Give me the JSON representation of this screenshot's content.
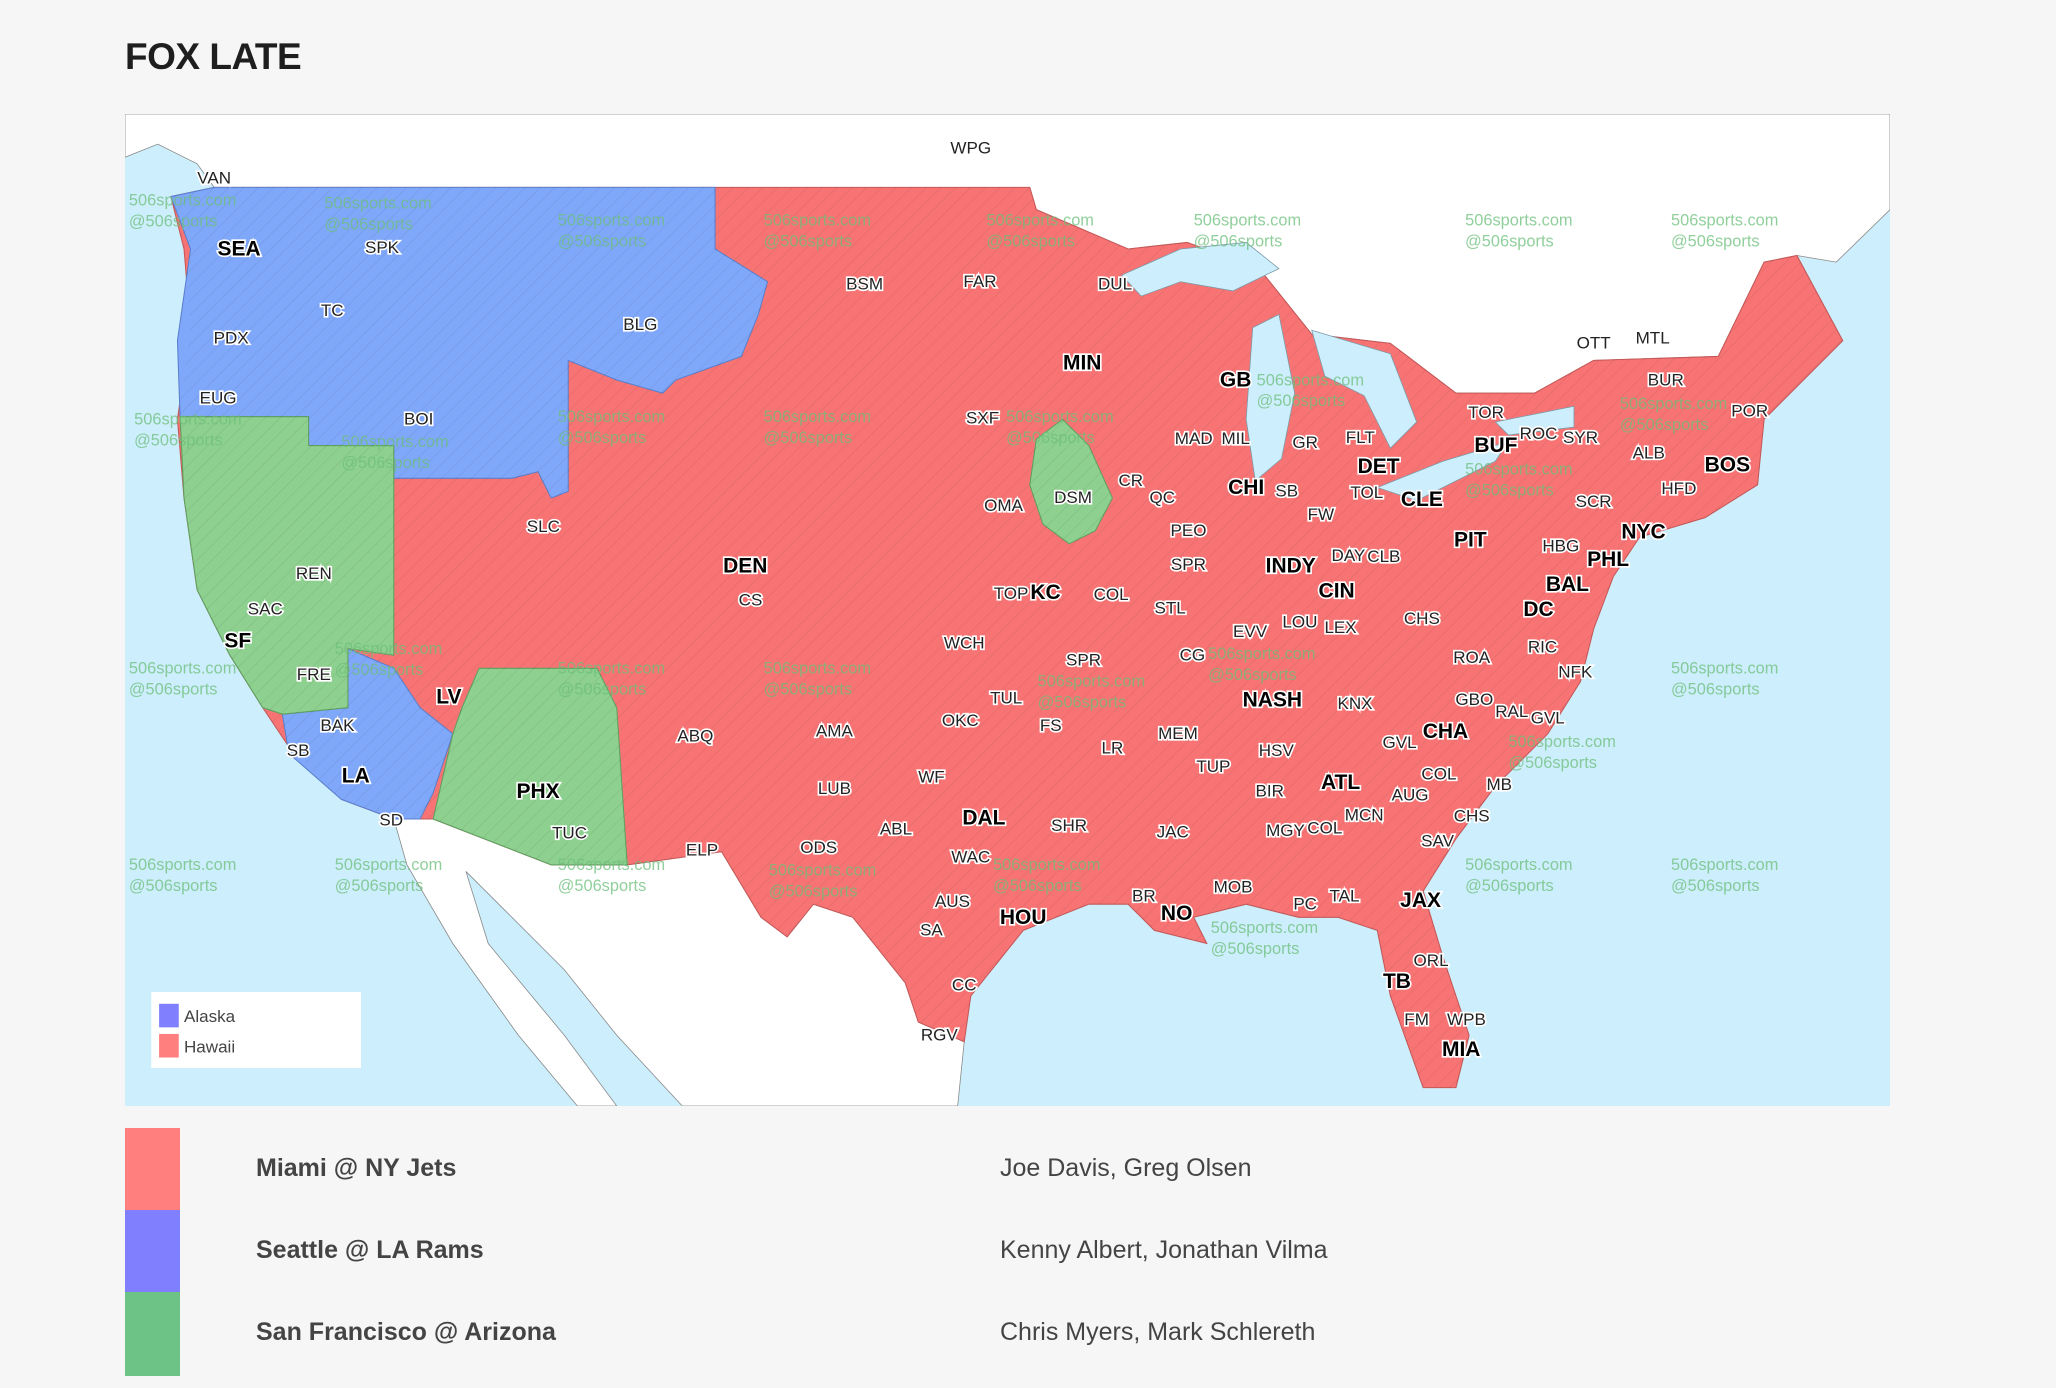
{
  "title": "FOX LATE",
  "colors": {
    "red": "#ff7f7f",
    "blue": "#8080ff",
    "green": "#6dc285",
    "water": "#cdeefc"
  },
  "map": {
    "watermark": [
      "506sports.com",
      "@506sports"
    ],
    "inset_legend": [
      {
        "label": "Alaska",
        "color": "#8080ff"
      },
      {
        "label": "Hawaii",
        "color": "#ff7f7f"
      }
    ],
    "city_labels": [
      "VAN",
      "SEA",
      "SPK",
      "TC",
      "PDX",
      "EUG",
      "BOI",
      "BLG",
      "WPG",
      "BSM",
      "FAR",
      "DUL",
      "MIN",
      "GB",
      "SXF",
      "MAD",
      "MIL",
      "GR",
      "FLT",
      "DET",
      "TOR",
      "ROC",
      "SYR",
      "BUF",
      "OTT",
      "MTL",
      "BUR",
      "POR",
      "ALB",
      "BOS",
      "HFD",
      "SCR",
      "NYC",
      "PHL",
      "HBG",
      "BAL",
      "DC",
      "RIC",
      "NFK",
      "ROA",
      "CHS",
      "PIT",
      "CLE",
      "TOL",
      "FW",
      "SB",
      "CHI",
      "DSM",
      "CR",
      "QC",
      "OMA",
      "PEO",
      "SPR",
      "INDY",
      "DAY",
      "CLB",
      "CIN",
      "LOU",
      "LEX",
      "EVV",
      "STL",
      "COL",
      "KC",
      "TOP",
      "DEN",
      "CS",
      "SLC",
      "REN",
      "SAC",
      "SF",
      "FRE",
      "BAK",
      "SB",
      "LA",
      "SD",
      "LV",
      "PHX",
      "TUC",
      "ABQ",
      "ELP",
      "AMA",
      "LUB",
      "ODS",
      "ABL",
      "WF",
      "OKC",
      "WCH",
      "TUL",
      "FS",
      "SPR",
      "LR",
      "MEM",
      "NASH",
      "KNX",
      "GBO",
      "RAL",
      "GVL",
      "CHA",
      "GVL",
      "HSV",
      "TUP",
      "ATL",
      "COL",
      "AUG",
      "MB",
      "BIR",
      "MGY",
      "COL",
      "MCN",
      "CHS",
      "SAV",
      "DAL",
      "SHR",
      "JAC",
      "WAC",
      "AUS",
      "SA",
      "HOU",
      "BR",
      "NO",
      "MOB",
      "PC",
      "TAL",
      "JAX",
      "ORL",
      "TB",
      "WPB",
      "FM",
      "MIA",
      "CC",
      "RGV",
      "CG"
    ]
  },
  "games": [
    {
      "matchup": "Miami @ NY Jets",
      "announcers": "Joe Davis, Greg Olsen",
      "color": "#ff7f7f"
    },
    {
      "matchup": "Seattle @ LA Rams",
      "announcers": "Kenny Albert, Jonathan Vilma",
      "color": "#8080ff"
    },
    {
      "matchup": "San Francisco @ Arizona",
      "announcers": "Chris Myers, Mark Schlereth",
      "color": "#6dc285"
    }
  ]
}
